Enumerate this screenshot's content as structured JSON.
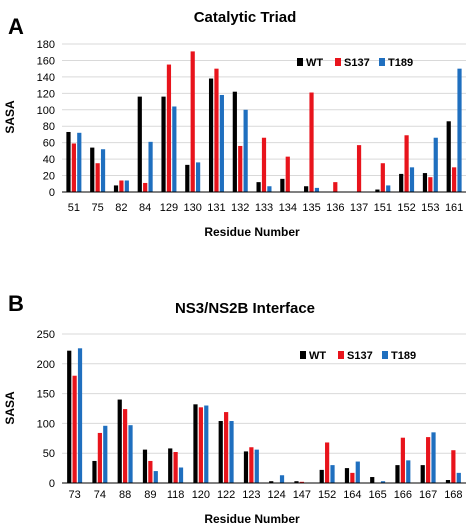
{
  "colors": {
    "WT": "#000000",
    "S137": "#e8141c",
    "T189": "#1f6fbf",
    "grid": "#d9d9d9",
    "axis": "#000000"
  },
  "chart_data": [
    {
      "type": "bar",
      "panel": "A",
      "title": "Catalytic Triad",
      "xlabel": "Residue Number",
      "ylabel": "SASA",
      "ylim": [
        0,
        180
      ],
      "yticks": [
        0,
        20,
        40,
        60,
        80,
        100,
        120,
        140,
        160,
        180
      ],
      "grid": true,
      "legend": "top-right",
      "categories": [
        "51",
        "75",
        "82",
        "84",
        "129",
        "130",
        "131",
        "132",
        "133",
        "134",
        "135",
        "136",
        "137",
        "151",
        "152",
        "153",
        "161"
      ],
      "series": [
        {
          "name": "WT",
          "values": [
            73,
            54,
            8,
            116,
            116,
            33,
            138,
            122,
            12,
            16,
            7,
            0,
            0,
            3,
            22,
            23,
            86
          ]
        },
        {
          "name": "S137",
          "values": [
            59,
            35,
            14,
            11,
            155,
            171,
            150,
            56,
            66,
            43,
            121,
            12,
            57,
            35,
            69,
            18,
            30
          ]
        },
        {
          "name": "T189",
          "values": [
            72,
            52,
            14,
            61,
            104,
            36,
            118,
            100,
            7,
            0,
            5,
            0,
            0,
            8,
            30,
            66,
            150
          ]
        }
      ]
    },
    {
      "type": "bar",
      "panel": "B",
      "title": "NS3/NS2B Interface",
      "xlabel": "Residue Number",
      "ylabel": "SASA",
      "ylim": [
        0,
        250
      ],
      "yticks": [
        0,
        50,
        100,
        150,
        200,
        250
      ],
      "grid": true,
      "legend": "top-right",
      "categories": [
        "73",
        "74",
        "88",
        "89",
        "118",
        "120",
        "122",
        "123",
        "124",
        "147",
        "152",
        "164",
        "165",
        "166",
        "167",
        "168"
      ],
      "series": [
        {
          "name": "WT",
          "values": [
            222,
            37,
            140,
            56,
            58,
            132,
            104,
            53,
            3,
            3,
            22,
            25,
            10,
            30,
            30,
            5
          ]
        },
        {
          "name": "S137",
          "values": [
            180,
            84,
            124,
            37,
            52,
            127,
            119,
            60,
            0,
            2,
            68,
            17,
            0,
            76,
            77,
            55
          ]
        },
        {
          "name": "T189",
          "values": [
            226,
            96,
            97,
            20,
            26,
            130,
            104,
            56,
            13,
            0,
            30,
            36,
            3,
            38,
            85,
            17
          ]
        }
      ]
    }
  ]
}
